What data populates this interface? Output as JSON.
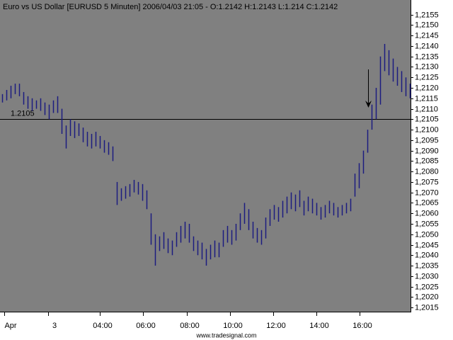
{
  "chart_data": {
    "type": "ohlc",
    "title": "Euro vs US Dollar [EURUSD  5 Minuten] 2006/04/03 21:05 - O:1.2142 H:1.2143 L:1.214 C:1.2142",
    "color": "#1c1c80",
    "background": "#808080",
    "high": [
      1.2117,
      1.2119,
      1.2121,
      1.2122,
      1.2122,
      1.2118,
      1.2116,
      1.2115,
      1.2114,
      1.2115,
      1.2113,
      1.2112,
      1.2114,
      1.2116,
      1.211,
      1.2102,
      1.2105,
      1.2104,
      1.2103,
      1.2101,
      1.2099,
      1.2098,
      1.2099,
      1.2097,
      1.2095,
      1.2094,
      1.2092,
      1.2075,
      1.2072,
      1.2073,
      1.2074,
      1.2076,
      1.2075,
      1.2074,
      1.2071,
      1.206,
      1.205,
      1.2049,
      1.2051,
      1.2048,
      1.2047,
      1.2051,
      1.2054,
      1.2056,
      1.2055,
      1.2049,
      1.2047,
      1.2046,
      1.2043,
      1.2045,
      1.2047,
      1.2046,
      1.2052,
      1.2054,
      1.2052,
      1.2055,
      1.206,
      1.2065,
      1.2062,
      1.2056,
      1.2053,
      1.2052,
      1.2058,
      1.2062,
      1.2064,
      1.2063,
      1.2066,
      1.2068,
      1.207,
      1.2069,
      1.2071,
      1.2066,
      1.2068,
      1.2067,
      1.2065,
      1.2063,
      1.2064,
      1.2066,
      1.2065,
      1.2063,
      1.2064,
      1.2065,
      1.2067,
      1.2079,
      1.2084,
      1.209,
      1.21,
      1.2112,
      1.212,
      1.2135,
      1.2141,
      1.2138,
      1.2134,
      1.213,
      1.2128,
      1.2125,
      1.2122
    ],
    "low": [
      1.2113,
      1.2114,
      1.2115,
      1.2117,
      1.2116,
      1.2112,
      1.211,
      1.2109,
      1.211,
      1.2109,
      1.2107,
      1.2105,
      1.2108,
      1.2108,
      1.2098,
      1.2091,
      1.2097,
      1.2096,
      1.2097,
      1.2094,
      1.2092,
      1.2091,
      1.2092,
      1.2091,
      1.2089,
      1.2088,
      1.2085,
      1.2064,
      1.2066,
      1.2067,
      1.2068,
      1.207,
      1.2069,
      1.2066,
      1.2062,
      1.2045,
      1.2035,
      1.2042,
      1.2043,
      1.2041,
      1.204,
      1.2044,
      1.2046,
      1.2048,
      1.2046,
      1.2042,
      1.204,
      1.2038,
      1.2035,
      1.2038,
      1.2039,
      1.2039,
      1.2044,
      1.2046,
      1.2045,
      1.2047,
      1.2052,
      1.2055,
      1.2052,
      1.2048,
      1.2046,
      1.2045,
      1.2048,
      1.2054,
      1.2057,
      1.2056,
      1.2058,
      1.206,
      1.2062,
      1.2061,
      1.2063,
      1.2059,
      1.2061,
      1.206,
      1.2059,
      1.2057,
      1.2058,
      1.206,
      1.2059,
      1.2058,
      1.2059,
      1.206,
      1.2061,
      1.2068,
      1.2072,
      1.2079,
      1.2089,
      1.21,
      1.2105,
      1.2112,
      1.2128,
      1.2126,
      1.2123,
      1.2121,
      1.2118,
      1.2116,
      1.2115
    ],
    "ylim": [
      1.2013,
      1.2162
    ],
    "yticks": [
      {
        "value": 1.2155,
        "label": "1,2155"
      },
      {
        "value": 1.215,
        "label": "1,2150"
      },
      {
        "value": 1.2145,
        "label": "1,2145"
      },
      {
        "value": 1.214,
        "label": "1,2140"
      },
      {
        "value": 1.2135,
        "label": "1,2135"
      },
      {
        "value": 1.213,
        "label": "1,2130"
      },
      {
        "value": 1.2125,
        "label": "1,2125"
      },
      {
        "value": 1.212,
        "label": "1,2120"
      },
      {
        "value": 1.2115,
        "label": "1,2115"
      },
      {
        "value": 1.211,
        "label": "1,2110"
      },
      {
        "value": 1.2105,
        "label": "1,2105"
      },
      {
        "value": 1.21,
        "label": "1,2100"
      },
      {
        "value": 1.2095,
        "label": "1,2095"
      },
      {
        "value": 1.209,
        "label": "1,2090"
      },
      {
        "value": 1.2085,
        "label": "1,2085"
      },
      {
        "value": 1.208,
        "label": "1,2080"
      },
      {
        "value": 1.2075,
        "label": "1,2075"
      },
      {
        "value": 1.207,
        "label": "1,2070"
      },
      {
        "value": 1.2065,
        "label": "1,2065"
      },
      {
        "value": 1.206,
        "label": "1,2060"
      },
      {
        "value": 1.2055,
        "label": "1,2055"
      },
      {
        "value": 1.205,
        "label": "1,2050"
      },
      {
        "value": 1.2045,
        "label": "1,2045"
      },
      {
        "value": 1.204,
        "label": "1,2040"
      },
      {
        "value": 1.2035,
        "label": "1,2035"
      },
      {
        "value": 1.203,
        "label": "1,2030"
      },
      {
        "value": 1.2025,
        "label": "1,2025"
      },
      {
        "value": 1.202,
        "label": "1,2020"
      },
      {
        "value": 1.2015,
        "label": "1,2015"
      }
    ],
    "x_labels": [
      "Apr",
      "3",
      "04:00",
      "06:00",
      "08:00",
      "10:00",
      "12:00",
      "14:00",
      "16:00"
    ],
    "hline": 1.2105,
    "footer": "www.tradesignal.com"
  }
}
